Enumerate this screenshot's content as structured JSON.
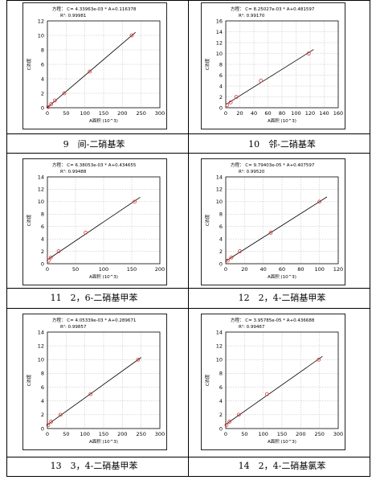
{
  "chart_data": [
    {
      "type": "scatter",
      "equation": "方程： C= 4.33963e-03 * A+0.116378",
      "r2": "R²: 0.99981",
      "xlabel": "A面积 (10^3)",
      "ylabel": "C浓度",
      "xlim": [
        0,
        300
      ],
      "ylim": [
        0,
        12
      ],
      "xticks": [
        "0",
        "50",
        "100",
        "150",
        "200",
        "250",
        "300"
      ],
      "yticks": [
        "0",
        "2",
        "4",
        "6",
        "8",
        "10",
        "12"
      ],
      "x": [
        2,
        10,
        20,
        45,
        113,
        225
      ],
      "y": [
        0.1,
        0.5,
        1.0,
        2.0,
        5.0,
        10.0
      ],
      "line": {
        "slope": 0.00433963,
        "intercept": 0.116378,
        "x_range": [
          0,
          235
        ]
      },
      "caption": ""
    },
    {
      "type": "scatter",
      "equation": "方程： C= 8.25027e-03 * A+0.481597",
      "r2": "R²: 0.99170",
      "xlabel": "A面积 (10^3)",
      "ylabel": "C浓度",
      "xlim": [
        0,
        160
      ],
      "ylim": [
        0,
        16
      ],
      "xticks": [
        "0",
        "20",
        "40",
        "60",
        "80",
        "100",
        "120",
        "140",
        "160"
      ],
      "yticks": [
        "0",
        "2",
        "4",
        "6",
        "8",
        "10",
        "12",
        "14",
        "16"
      ],
      "x": [
        2,
        7,
        15,
        50,
        118
      ],
      "y": [
        0.5,
        1.0,
        2.0,
        5.0,
        10.0
      ],
      "line": {
        "slope": 0.00825027,
        "intercept": 0.481597,
        "x_range": [
          0,
          125
        ]
      },
      "caption": ""
    },
    {
      "type": "scatter",
      "equation": "方程： C= 6.38053e-03 * A+0.434655",
      "r2": "R²: 0.99488",
      "xlabel": "A面积 (10^3)",
      "ylabel": "C浓度",
      "xlim": [
        0,
        200
      ],
      "ylim": [
        0,
        14
      ],
      "xticks": [
        "0",
        "50",
        "100",
        "150",
        "200"
      ],
      "yticks": [
        "0",
        "2",
        "4",
        "6",
        "8",
        "10",
        "12",
        "14"
      ],
      "x": [
        2,
        6,
        20,
        68,
        155
      ],
      "y": [
        0.5,
        1.0,
        2.0,
        5.0,
        10.0
      ],
      "line": {
        "slope": 0.00638053,
        "intercept": 0.434655,
        "x_range": [
          0,
          165
        ]
      },
      "caption": "9　间-二硝基苯"
    },
    {
      "type": "scatter",
      "equation": "方程： C= 9.79403e-05 * A+0.407597",
      "r2": "R²: 0.99520",
      "xlabel": "A面积 (10^3)",
      "ylabel": "C浓度",
      "xlim": [
        0,
        120
      ],
      "ylim": [
        0,
        14
      ],
      "xticks": [
        "0",
        "20",
        "40",
        "60",
        "80",
        "100",
        "120"
      ],
      "yticks": [
        "0",
        "2",
        "4",
        "6",
        "8",
        "10",
        "12",
        "14"
      ],
      "x": [
        2,
        6,
        15,
        48,
        100
      ],
      "y": [
        0.5,
        1.0,
        2.0,
        5.0,
        10.0
      ],
      "line": {
        "slope": 0.0979403,
        "intercept": 0.407597,
        "x_range": [
          0,
          108
        ]
      },
      "caption": "10　邻-二硝基苯"
    },
    {
      "type": "scatter",
      "equation": "方程： C= 4.05339e-03 * A+0.289671",
      "r2": "R²: 0.99857",
      "xlabel": "A面积 (10^3)",
      "ylabel": "C浓度",
      "xlim": [
        0,
        300
      ],
      "ylim": [
        0,
        14
      ],
      "xticks": [
        "0",
        "50",
        "100",
        "150",
        "200",
        "250",
        "300"
      ],
      "yticks": [
        "0",
        "2",
        "4",
        "6",
        "8",
        "10",
        "12",
        "14"
      ],
      "x": [
        2,
        10,
        35,
        115,
        242
      ],
      "y": [
        0.5,
        1.0,
        2.0,
        5.0,
        10.0
      ],
      "line": {
        "slope": 0.00405339,
        "intercept": 0.289671,
        "x_range": [
          0,
          250
        ]
      },
      "caption": "11　2，6-二硝基甲苯"
    },
    {
      "type": "scatter",
      "equation": "方程： C= 3.95785e-05 * A+0.436688",
      "r2": "R²: 0.99467",
      "xlabel": "A面积 (10^3)",
      "ylabel": "C浓度",
      "xlim": [
        0,
        300
      ],
      "ylim": [
        0,
        14
      ],
      "xticks": [
        "0",
        "50",
        "100",
        "150",
        "200",
        "250",
        "300"
      ],
      "yticks": [
        "0",
        "2",
        "4",
        "6",
        "8",
        "10",
        "12",
        "14"
      ],
      "x": [
        2,
        10,
        35,
        110,
        248
      ],
      "y": [
        0.5,
        1.0,
        2.0,
        5.0,
        10.0
      ],
      "line": {
        "slope": 0.0395785,
        "intercept": 0.436688,
        "x_range": [
          0,
          258
        ]
      },
      "caption": "12　2，4-二硝基甲苯"
    }
  ],
  "captions_bottom": [
    "13　3，4-二硝基甲苯",
    "14　2，4-二硝基氯苯"
  ],
  "colors": {
    "line": "#000000",
    "marker": "#e23b3b",
    "grid": "#b8b8b8"
  }
}
